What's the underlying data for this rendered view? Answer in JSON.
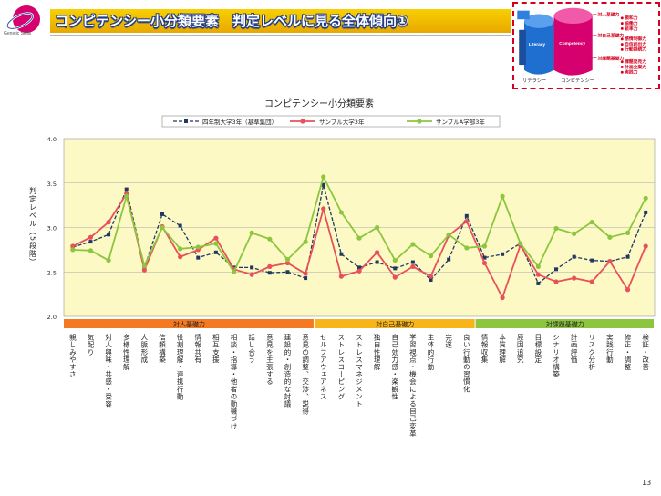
{
  "header": {
    "title": "コンピテンシー小分類要素　判定レベルに見る全体傾向①",
    "logo_text": "Genetic Skills",
    "page_number": "13"
  },
  "diagram": {
    "literacy_label": "Literacy",
    "competency_label": "Competency",
    "literacy_caption": "リテラシー",
    "competency_caption": "コンピテンシー",
    "groups": [
      {
        "name": "対人基礎力",
        "items": [
          "親和力",
          "協働力",
          "統率力"
        ]
      },
      {
        "name": "対自己基礎力",
        "items": [
          "感情制御力",
          "自信創出力",
          "行動持続力"
        ]
      },
      {
        "name": "対課題基礎力",
        "items": [
          "課題発見力",
          "計画立案力",
          "実践力"
        ]
      }
    ]
  },
  "chart_data": {
    "type": "line",
    "title": "コンピテンシー小分類要素",
    "ylabel": "判定レベル（5段階）",
    "ylim": [
      2.0,
      4.0
    ],
    "yticks": [
      "2.0",
      "2.5",
      "3.0",
      "3.5",
      "4.0"
    ],
    "legend_position": "top",
    "grid": true,
    "categories": [
      "親しみやすさ",
      "気配り",
      "対人興味・共感・受容",
      "多様性理解",
      "人脈形成",
      "信頼構築",
      "役割理解・連携行動",
      "情報共有",
      "相互支援",
      "相談・指導・他者の動機づけ",
      "話し合う",
      "意見を主張する",
      "建設的・創造的な討議",
      "意見の調整、交渉、説得",
      "セルフアウェアネス",
      "ストレスコーピング",
      "ストレスマネジメント",
      "独自性理解",
      "自己効力感・楽観性",
      "学習視点・機会による自己変革",
      "主体的行動",
      "完遂",
      "良い行動の習慣化",
      "情報収集",
      "本質理解",
      "原因追究",
      "目標設定",
      "シナリオ構築",
      "計画評価",
      "リスク分析",
      "実践行動",
      "修正・調整",
      "検証・改善"
    ],
    "groups": [
      {
        "name": "対人基礎力",
        "start": 0,
        "end": 13,
        "color": "#f47920"
      },
      {
        "name": "対自己基礎力",
        "start": 14,
        "end": 22,
        "color": "#f7b519"
      },
      {
        "name": "対課題基礎力",
        "start": 23,
        "end": 32,
        "color": "#8cc63f"
      }
    ],
    "series": [
      {
        "name": "四年制大学3年（基準集団）",
        "color": "#1f3864",
        "dash": true,
        "values": [
          2.78,
          2.84,
          2.92,
          3.43,
          2.55,
          3.15,
          3.02,
          2.66,
          2.72,
          2.55,
          2.55,
          2.49,
          2.5,
          2.43,
          3.48,
          2.7,
          2.55,
          2.61,
          2.54,
          2.61,
          2.41,
          2.64,
          3.13,
          2.66,
          2.7,
          2.82,
          2.37,
          2.53,
          2.67,
          2.63,
          2.62,
          2.67,
          3.17
        ]
      },
      {
        "name": "サンプル大学3年",
        "color": "#e8505b",
        "dash": false,
        "values": [
          2.79,
          2.89,
          3.06,
          3.38,
          2.52,
          3.01,
          2.67,
          2.75,
          2.88,
          2.53,
          2.47,
          2.56,
          2.6,
          2.48,
          3.21,
          2.45,
          2.51,
          2.72,
          2.44,
          2.56,
          2.45,
          2.91,
          3.07,
          2.6,
          2.21,
          2.8,
          2.47,
          2.39,
          2.43,
          2.39,
          2.62,
          2.3,
          2.79
        ]
      },
      {
        "name": "サンプルA学部3年",
        "color": "#8cc63f",
        "dash": false,
        "values": [
          2.75,
          2.74,
          2.63,
          3.35,
          2.57,
          3.0,
          2.76,
          2.78,
          2.82,
          2.5,
          2.94,
          2.87,
          2.64,
          2.84,
          3.57,
          3.17,
          2.88,
          3.0,
          2.63,
          2.81,
          2.68,
          2.92,
          2.77,
          2.79,
          3.35,
          2.82,
          2.56,
          2.99,
          2.93,
          3.06,
          2.89,
          2.94,
          3.33
        ]
      }
    ]
  }
}
